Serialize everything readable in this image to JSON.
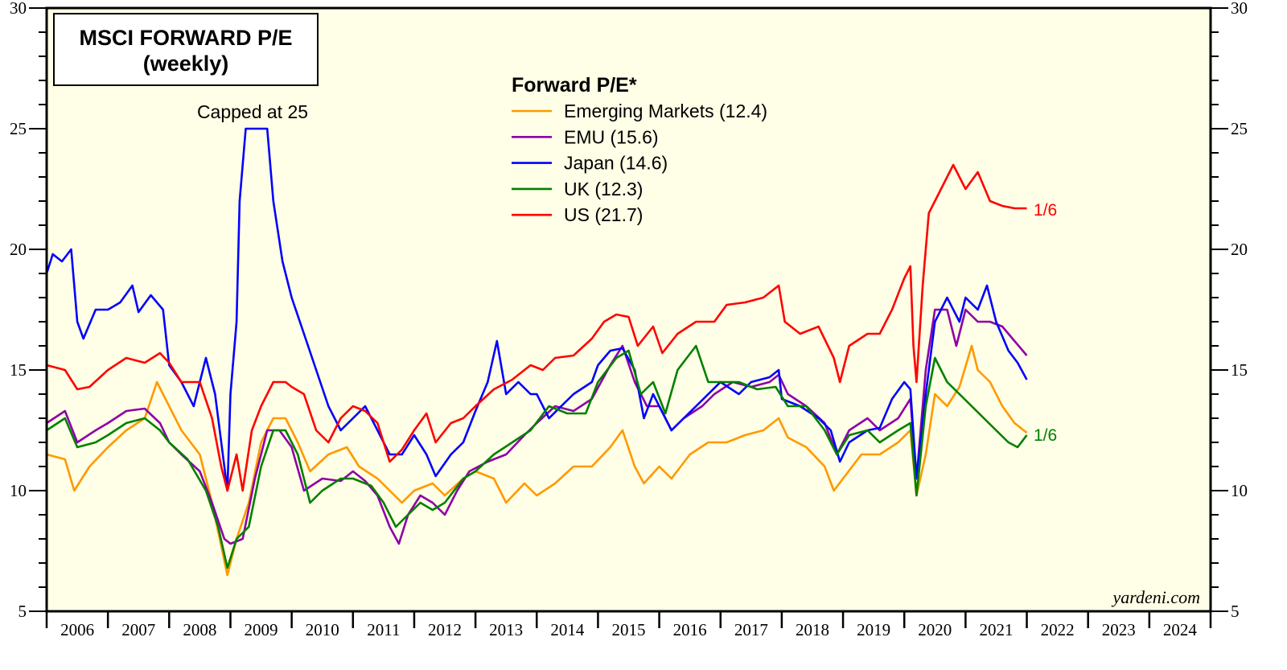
{
  "chart_data": {
    "type": "line",
    "title": "MSCI FORWARD P/E",
    "subtitle": "(weekly)",
    "legend_title": "Forward P/E*",
    "legend_placement": "top-center",
    "annotation": "Capped at 25",
    "source": "yardeni.com",
    "ylim": [
      5,
      30
    ],
    "yticks": [
      "5",
      "10",
      "15",
      "20",
      "25",
      "30"
    ],
    "xlim": [
      2006,
      2025
    ],
    "xticks": [
      "2006",
      "2007",
      "2008",
      "2009",
      "2010",
      "2011",
      "2012",
      "2013",
      "2014",
      "2015",
      "2016",
      "2017",
      "2018",
      "2019",
      "2020",
      "2021",
      "2022",
      "2023",
      "2024"
    ],
    "grid": false,
    "background": "#fffee6",
    "end_labels": [
      {
        "text": "1/6",
        "color": "#ff0000",
        "value": 21.7
      },
      {
        "text": "1/6",
        "color": "#008000",
        "value": 12.3
      }
    ],
    "series": [
      {
        "name": "Emerging Markets (12.4)",
        "color": "#ff9900",
        "x": [
          2006.0,
          2006.3,
          2006.45,
          2006.7,
          2007.0,
          2007.3,
          2007.6,
          2007.8,
          2008.0,
          2008.2,
          2008.5,
          2008.7,
          2008.95,
          2009.1,
          2009.3,
          2009.5,
          2009.7,
          2009.9,
          2010.1,
          2010.3,
          2010.6,
          2010.9,
          2011.1,
          2011.4,
          2011.6,
          2011.8,
          2012.0,
          2012.3,
          2012.5,
          2012.8,
          2013.0,
          2013.3,
          2013.5,
          2013.8,
          2014.0,
          2014.3,
          2014.6,
          2014.9,
          2015.2,
          2015.4,
          2015.6,
          2015.75,
          2016.0,
          2016.2,
          2016.5,
          2016.8,
          2017.1,
          2017.4,
          2017.7,
          2017.95,
          2018.1,
          2018.4,
          2018.7,
          2018.85,
          2019.0,
          2019.3,
          2019.6,
          2019.9,
          2020.1,
          2020.2,
          2020.35,
          2020.5,
          2020.7,
          2020.9,
          2021.1,
          2021.2,
          2021.4,
          2021.6,
          2021.8,
          2022.0
        ],
        "y": [
          11.5,
          11.3,
          10.0,
          11.0,
          11.8,
          12.5,
          13.0,
          14.5,
          13.5,
          12.5,
          11.5,
          9.5,
          6.5,
          8.0,
          9.5,
          12.0,
          13.0,
          13.0,
          12.0,
          10.8,
          11.5,
          11.8,
          11.0,
          10.5,
          10.0,
          9.5,
          10.0,
          10.3,
          9.8,
          10.5,
          10.8,
          10.5,
          9.5,
          10.3,
          9.8,
          10.3,
          11.0,
          11.0,
          11.8,
          12.5,
          11.0,
          10.3,
          11.0,
          10.5,
          11.5,
          12.0,
          12.0,
          12.3,
          12.5,
          13.0,
          12.2,
          11.8,
          11.0,
          10.0,
          10.5,
          11.5,
          11.5,
          12.0,
          12.5,
          9.8,
          11.5,
          14.0,
          13.5,
          14.3,
          16.0,
          15.0,
          14.5,
          13.5,
          12.8,
          12.4
        ]
      },
      {
        "name": "EMU (15.6)",
        "color": "#8e00a8",
        "x": [
          2006.0,
          2006.3,
          2006.5,
          2006.8,
          2007.0,
          2007.3,
          2007.6,
          2007.85,
          2008.0,
          2008.2,
          2008.5,
          2008.7,
          2008.9,
          2009.0,
          2009.2,
          2009.4,
          2009.6,
          2009.8,
          2010.0,
          2010.2,
          2010.5,
          2010.8,
          2011.0,
          2011.2,
          2011.4,
          2011.6,
          2011.75,
          2011.9,
          2012.1,
          2012.3,
          2012.5,
          2012.7,
          2012.9,
          2013.2,
          2013.5,
          2013.8,
          2014.0,
          2014.3,
          2014.6,
          2014.9,
          2015.2,
          2015.4,
          2015.6,
          2015.8,
          2016.0,
          2016.2,
          2016.4,
          2016.7,
          2016.9,
          2017.2,
          2017.5,
          2017.8,
          2017.95,
          2018.1,
          2018.4,
          2018.7,
          2018.9,
          2019.1,
          2019.4,
          2019.6,
          2019.9,
          2020.1,
          2020.2,
          2020.35,
          2020.5,
          2020.7,
          2020.85,
          2021.0,
          2021.2,
          2021.4,
          2021.6,
          2021.8,
          2022.0
        ],
        "y": [
          12.8,
          13.3,
          12.0,
          12.5,
          12.8,
          13.3,
          13.4,
          12.8,
          12.0,
          11.5,
          10.8,
          9.5,
          8.0,
          7.8,
          8.0,
          10.5,
          12.5,
          12.5,
          11.8,
          10.0,
          10.5,
          10.4,
          10.8,
          10.4,
          9.8,
          8.5,
          7.8,
          9.0,
          9.8,
          9.5,
          9.0,
          10.0,
          10.8,
          11.2,
          11.5,
          12.3,
          12.8,
          13.5,
          13.3,
          13.8,
          15.2,
          16.0,
          14.5,
          13.5,
          13.5,
          12.5,
          13.0,
          13.5,
          14.0,
          14.5,
          14.3,
          14.5,
          14.8,
          14.0,
          13.5,
          12.8,
          11.5,
          12.5,
          13.0,
          12.5,
          13.0,
          13.8,
          10.5,
          15.0,
          17.5,
          17.5,
          16.0,
          17.5,
          17.0,
          17.0,
          16.8,
          16.2,
          15.6
        ]
      },
      {
        "name": "Japan (14.6)",
        "color": "#0000ff",
        "x": [
          2006.0,
          2006.1,
          2006.25,
          2006.4,
          2006.5,
          2006.6,
          2006.8,
          2007.0,
          2007.2,
          2007.4,
          2007.5,
          2007.7,
          2007.9,
          2008.0,
          2008.2,
          2008.4,
          2008.6,
          2008.75,
          2008.9,
          2008.95,
          2009.0,
          2009.1,
          2009.15,
          2009.25,
          2009.6,
          2009.7,
          2009.85,
          2010.0,
          2010.2,
          2010.4,
          2010.6,
          2010.8,
          2011.0,
          2011.2,
          2011.4,
          2011.6,
          2011.8,
          2012.0,
          2012.2,
          2012.35,
          2012.6,
          2012.8,
          2013.0,
          2013.2,
          2013.35,
          2013.5,
          2013.7,
          2013.9,
          2014.0,
          2014.2,
          2014.4,
          2014.6,
          2014.9,
          2015.0,
          2015.2,
          2015.4,
          2015.6,
          2015.75,
          2015.9,
          2016.0,
          2016.2,
          2016.4,
          2016.6,
          2016.8,
          2017.0,
          2017.3,
          2017.5,
          2017.8,
          2017.95,
          2018.0,
          2018.3,
          2018.6,
          2018.8,
          2018.95,
          2019.1,
          2019.4,
          2019.6,
          2019.8,
          2020.0,
          2020.1,
          2020.2,
          2020.35,
          2020.5,
          2020.7,
          2020.9,
          2021.0,
          2021.2,
          2021.35,
          2021.5,
          2021.7,
          2021.85,
          2022.0
        ],
        "y": [
          19.0,
          19.8,
          19.5,
          20.0,
          17.0,
          16.3,
          17.5,
          17.5,
          17.8,
          18.5,
          17.4,
          18.1,
          17.5,
          15.2,
          14.5,
          13.5,
          15.5,
          14.0,
          11.0,
          10.0,
          14.0,
          17.0,
          22.0,
          25.0,
          25.0,
          22.0,
          19.5,
          18.0,
          16.5,
          15.0,
          13.5,
          12.5,
          13.0,
          13.5,
          12.5,
          11.5,
          11.5,
          12.3,
          11.5,
          10.6,
          11.5,
          12.0,
          13.3,
          14.5,
          16.2,
          14.0,
          14.5,
          14.0,
          14.0,
          13.0,
          13.5,
          14.0,
          14.5,
          15.2,
          15.8,
          15.9,
          15.0,
          13.0,
          14.0,
          13.5,
          12.5,
          13.0,
          13.5,
          14.0,
          14.5,
          14.0,
          14.5,
          14.7,
          15.0,
          13.8,
          13.5,
          13.0,
          12.5,
          11.2,
          12.0,
          12.5,
          12.6,
          13.8,
          14.5,
          14.2,
          10.5,
          14.0,
          17.0,
          18.0,
          17.0,
          18.0,
          17.5,
          18.5,
          17.0,
          15.8,
          15.3,
          14.6
        ]
      },
      {
        "name": "UK (12.3)",
        "color": "#008000",
        "x": [
          2006.0,
          2006.3,
          2006.5,
          2006.8,
          2007.0,
          2007.3,
          2007.6,
          2007.85,
          2008.0,
          2008.3,
          2008.6,
          2008.8,
          2008.95,
          2009.1,
          2009.3,
          2009.5,
          2009.7,
          2009.9,
          2010.1,
          2010.3,
          2010.5,
          2010.8,
          2011.0,
          2011.3,
          2011.5,
          2011.7,
          2011.9,
          2012.1,
          2012.3,
          2012.5,
          2012.8,
          2013.0,
          2013.3,
          2013.6,
          2013.9,
          2014.2,
          2014.5,
          2014.8,
          2015.0,
          2015.3,
          2015.5,
          2015.7,
          2015.9,
          2016.1,
          2016.3,
          2016.6,
          2016.8,
          2017.0,
          2017.3,
          2017.6,
          2017.9,
          2018.1,
          2018.4,
          2018.7,
          2018.9,
          2019.1,
          2019.4,
          2019.6,
          2019.9,
          2020.1,
          2020.2,
          2020.35,
          2020.5,
          2020.7,
          2020.9,
          2021.1,
          2021.3,
          2021.5,
          2021.7,
          2021.85,
          2022.0
        ],
        "y": [
          12.5,
          13.0,
          11.8,
          12.0,
          12.3,
          12.8,
          13.0,
          12.5,
          12.0,
          11.3,
          10.0,
          8.5,
          6.8,
          8.0,
          8.5,
          11.0,
          12.5,
          12.5,
          11.5,
          9.5,
          10.0,
          10.5,
          10.5,
          10.2,
          9.5,
          8.5,
          9.0,
          9.5,
          9.2,
          9.5,
          10.5,
          10.8,
          11.5,
          12.0,
          12.5,
          13.5,
          13.2,
          13.2,
          14.5,
          15.5,
          15.8,
          14.0,
          14.5,
          13.2,
          15.0,
          16.0,
          14.5,
          14.5,
          14.5,
          14.2,
          14.3,
          13.5,
          13.5,
          12.5,
          11.5,
          12.3,
          12.5,
          12.0,
          12.5,
          12.8,
          9.8,
          13.5,
          15.5,
          14.5,
          14.0,
          13.5,
          13.0,
          12.5,
          12.0,
          11.8,
          12.3
        ]
      },
      {
        "name": "US (21.7)",
        "color": "#ff0000",
        "x": [
          2006.0,
          2006.3,
          2006.5,
          2006.7,
          2007.0,
          2007.3,
          2007.6,
          2007.85,
          2008.0,
          2008.2,
          2008.5,
          2008.7,
          2008.85,
          2008.95,
          2009.1,
          2009.2,
          2009.35,
          2009.5,
          2009.7,
          2009.9,
          2010.0,
          2010.2,
          2010.4,
          2010.6,
          2010.8,
          2011.0,
          2011.2,
          2011.4,
          2011.6,
          2011.8,
          2012.0,
          2012.2,
          2012.35,
          2012.6,
          2012.8,
          2013.0,
          2013.3,
          2013.6,
          2013.9,
          2014.1,
          2014.3,
          2014.6,
          2014.9,
          2015.1,
          2015.3,
          2015.5,
          2015.65,
          2015.9,
          2016.05,
          2016.3,
          2016.6,
          2016.9,
          2017.1,
          2017.4,
          2017.7,
          2017.95,
          2018.05,
          2018.3,
          2018.6,
          2018.85,
          2018.95,
          2019.1,
          2019.4,
          2019.6,
          2019.8,
          2020.0,
          2020.1,
          2020.15,
          2020.2,
          2020.3,
          2020.4,
          2020.6,
          2020.8,
          2021.0,
          2021.2,
          2021.4,
          2021.6,
          2021.8,
          2022.0
        ],
        "y": [
          15.2,
          15.0,
          14.2,
          14.3,
          15.0,
          15.5,
          15.3,
          15.7,
          15.3,
          14.5,
          14.5,
          13.0,
          11.0,
          10.0,
          11.5,
          10.0,
          12.5,
          13.5,
          14.5,
          14.5,
          14.3,
          14.0,
          12.5,
          12.0,
          13.0,
          13.5,
          13.3,
          12.8,
          11.2,
          11.7,
          12.5,
          13.2,
          12.0,
          12.8,
          13.0,
          13.5,
          14.2,
          14.6,
          15.2,
          15.0,
          15.5,
          15.6,
          16.3,
          17.0,
          17.3,
          17.2,
          16.0,
          16.8,
          15.7,
          16.5,
          17.0,
          17.0,
          17.7,
          17.8,
          18.0,
          18.5,
          17.0,
          16.5,
          16.8,
          15.5,
          14.5,
          16.0,
          16.5,
          16.5,
          17.5,
          18.8,
          19.3,
          16.0,
          14.5,
          18.5,
          21.5,
          22.5,
          23.5,
          22.5,
          23.2,
          22.0,
          21.8,
          21.7,
          21.7
        ]
      }
    ]
  }
}
